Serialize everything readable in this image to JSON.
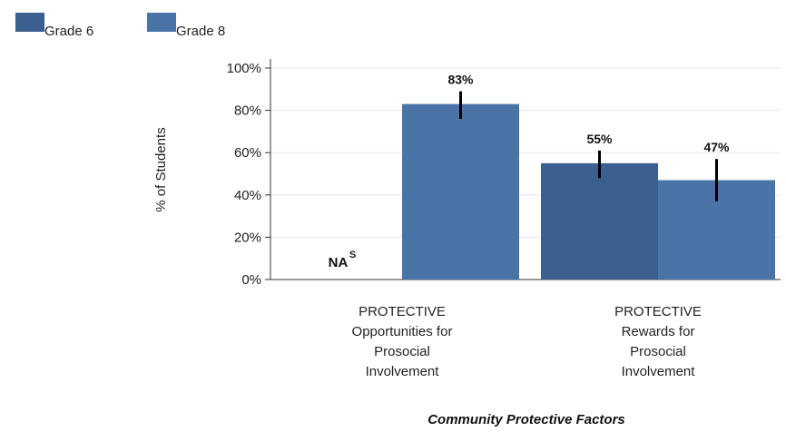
{
  "chart_data": {
    "type": "bar",
    "title": "",
    "xlabel": "Community Protective Factors",
    "ylabel": "% of Students",
    "ylim": [
      0,
      100
    ],
    "yticks": [
      "0%",
      "20%",
      "40%",
      "60%",
      "80%",
      "100%"
    ],
    "ytick_values": [
      0,
      20,
      40,
      60,
      80,
      100
    ],
    "categories": [
      [
        "PROTECTIVE",
        "Opportunities for",
        "Prosocial",
        "Involvement"
      ],
      [
        "PROTECTIVE",
        "Rewards for",
        "Prosocial",
        "Involvement"
      ]
    ],
    "series": [
      {
        "name": "Grade 6",
        "color": "#3b5f8e",
        "values": [
          null,
          55
        ],
        "labels": [
          "NA",
          "55%"
        ],
        "na_superscript": "S",
        "error_low": [
          null,
          48
        ],
        "error_high": [
          null,
          61
        ]
      },
      {
        "name": "Grade 8",
        "color": "#4a74a8",
        "values": [
          83,
          47
        ],
        "labels": [
          "83%",
          "47%"
        ],
        "error_low": [
          76,
          37
        ],
        "error_high": [
          89,
          57
        ]
      }
    ],
    "legend_position": "top-left",
    "grid": true,
    "error_bars": true
  }
}
